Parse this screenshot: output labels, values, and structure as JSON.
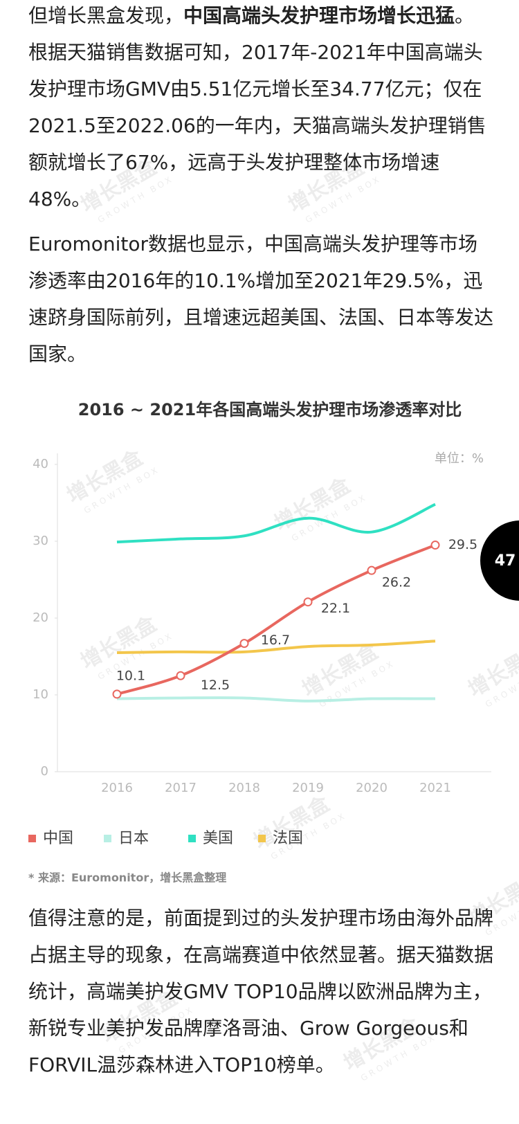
{
  "paragraphs": [
    [
      {
        "text": "但增长黑盒发现，"
      },
      {
        "text": "中国高端头发护理市场增长迅猛",
        "bold": true
      },
      {
        "text": "。根据天猫销售数据可知，2017年-2021年中国高端头发护理市场GMV由5.51亿元增长至34.77亿元；仅在2021.5至2022.06的一年内，天猫高端头发护理销售额就增长了67%，远高于头发护理整体市场增速48%。"
      }
    ],
    [
      {
        "text": "Euromonitor数据也显示，中国高端头发护理等市场渗透率由2016年的10.1%增加至2021年29.5%，迅速跻身国际前列，且增速远超美国、法国、日本等发达国家。"
      }
    ],
    [
      {
        "text": "值得注意的是，前面提到过的头发护理市场由海外品牌占据主导的现象，在高端赛道中依然显著。据天猫数据统计，高端美护发GMV TOP10品牌以欧洲品牌为主，新锐专业美护发品牌摩洛哥油、Grow Gorgeous和FORVIL温莎森林进入TOP10榜单。"
      }
    ]
  ],
  "watermark": {
    "name": "增长黑盒",
    "sub": "GROWTH BOX"
  },
  "chart_data": {
    "type": "line",
    "title": "2016 ~ 2021年各国高端头发护理市场渗透率对比",
    "unit": "单位：%",
    "categories": [
      "2016",
      "2017",
      "2018",
      "2019",
      "2020",
      "2021"
    ],
    "series": [
      {
        "name": "中国",
        "color": "#e8675f",
        "values": [
          10.1,
          12.5,
          16.7,
          22.1,
          26.2,
          29.5
        ],
        "markers": true,
        "data_labels": true
      },
      {
        "name": "日本",
        "color": "#b8efe4",
        "values": [
          9.5,
          9.6,
          9.6,
          9.2,
          9.5,
          9.5
        ]
      },
      {
        "name": "美国",
        "color": "#2fe0c2",
        "values": [
          29.9,
          30.3,
          30.7,
          33.0,
          31.2,
          34.8
        ]
      },
      {
        "name": "法国",
        "color": "#f3c64b",
        "values": [
          15.5,
          15.6,
          15.6,
          16.3,
          16.5,
          17.0
        ]
      }
    ],
    "ylim": [
      0,
      40
    ],
    "yticks": [
      0,
      10,
      20,
      30,
      40
    ],
    "grid": false,
    "legend": "bottom"
  },
  "source": "* 来源：Euromonitor，增长黑盒整理",
  "page_number": "47"
}
